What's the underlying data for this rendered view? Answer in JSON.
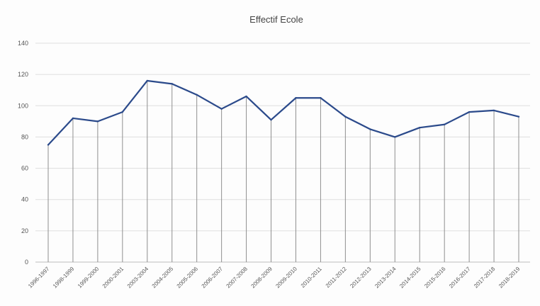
{
  "chart_data": {
    "type": "line",
    "title": "Effectif Ecole",
    "xlabel": "",
    "ylabel": "",
    "ylim": [
      0,
      140
    ],
    "yticks": [
      0,
      20,
      40,
      60,
      80,
      100,
      120,
      140
    ],
    "grid": true,
    "legend": "none",
    "categories": [
      "1996-1997",
      "1998-1999",
      "1999-2000",
      "2000-2001",
      "2003-2004",
      "2004-2005",
      "2005-2006",
      "2006-2007",
      "2007-2008",
      "2008-2009",
      "2009-2010",
      "2010-2011",
      "2011-2012",
      "2012-2013",
      "2013-2014",
      "2014-2015",
      "2015-2016",
      "2016-2017",
      "2017-2018",
      "2018-2019"
    ],
    "series": [
      {
        "values": [
          75,
          92,
          90,
          96,
          116,
          114,
          107,
          98,
          106,
          91,
          105,
          105,
          93,
          85,
          80,
          86,
          88,
          96,
          97,
          93
        ],
        "color": "#2b4a8b"
      }
    ]
  }
}
